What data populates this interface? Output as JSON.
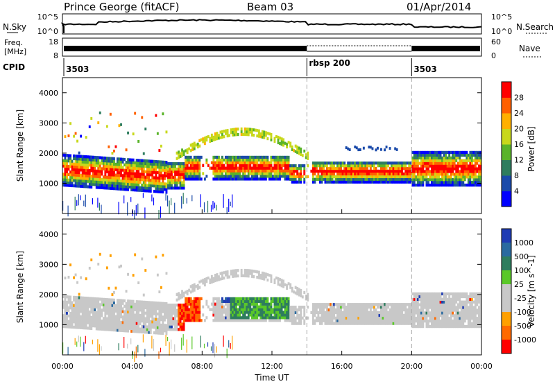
{
  "header": {
    "station": "Prince George (fitACF)",
    "beam": "Beam 03",
    "date": "01/Apr/2014"
  },
  "sky_panel": {
    "left_label": "N.Sky",
    "left_ticks": [
      "10^5",
      "10^0"
    ],
    "right_label": "N.Search",
    "right_ticks": [
      "10^5",
      "10^0"
    ]
  },
  "freq_panel": {
    "left_label_top": "Freq.",
    "left_label_unit": "[MHz]",
    "left_ticks": [
      "18",
      "8"
    ],
    "right_label": "Nave",
    "right_ticks": [
      "60",
      "0"
    ]
  },
  "cpid_panel": {
    "label": "CPID",
    "segments": [
      {
        "start_hour": 0,
        "label": "3503"
      },
      {
        "start_hour": 14,
        "label": "rbsp 200"
      },
      {
        "start_hour": 20,
        "label": "3503"
      }
    ]
  },
  "colors": {
    "power": [
      "#0000ff",
      "#1a4aaa",
      "#2e7d5e",
      "#5ab42a",
      "#c8d81c",
      "#ffb000",
      "#ff6000",
      "#ff0000"
    ],
    "velocity": [
      "#1f3cb4",
      "#2a6aa0",
      "#2e7d5e",
      "#5ac828",
      "#c8c8c8",
      "#c8c8c8",
      "#ffa000",
      "#ff6a00",
      "#ff0000"
    ]
  },
  "chart_data": [
    {
      "type": "heatmap",
      "name": "power",
      "ylabel": "Slant Range [km]",
      "xlabel": "",
      "xlim": [
        0,
        24
      ],
      "ylim": [
        0,
        4500
      ],
      "yticks": [
        1000,
        2000,
        3000,
        4000
      ],
      "colorbar": {
        "label": "Power [dB]",
        "ticks": [
          4,
          8,
          12,
          16,
          20,
          24,
          28
        ],
        "range": [
          0,
          32
        ]
      }
    },
    {
      "type": "heatmap",
      "name": "velocity",
      "ylabel": "Slant Range [km]",
      "xlabel": "Time UT",
      "xlim": [
        0,
        24
      ],
      "ylim": [
        0,
        4500
      ],
      "yticks": [
        1000,
        2000,
        3000,
        4000
      ],
      "xticks": [
        "00:00",
        "04:00",
        "08:00",
        "12:00",
        "16:00",
        "20:00",
        "00:00"
      ],
      "colorbar": {
        "label": "Velocity [m s^-1]",
        "ticks": [
          "1000",
          "500",
          "100",
          "25",
          "-25",
          "-100",
          "-500",
          "-1000"
        ]
      }
    }
  ]
}
